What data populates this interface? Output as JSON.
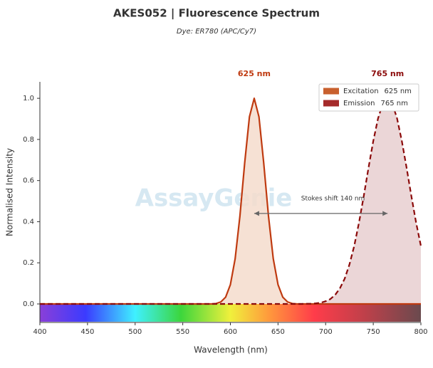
{
  "chart_data": {
    "type": "line",
    "title": "AKES052  |  Fluorescence Spectrum",
    "subtitle": "Dye: ER780 (APC/Cy7)",
    "x_label": "Wavelength (nm)",
    "y_label": "Normalised Intensity",
    "watermark": "AssayGenie",
    "x": [
      400,
      560,
      570,
      580,
      585,
      590,
      595,
      600,
      605,
      610,
      615,
      620,
      625,
      630,
      635,
      640,
      645,
      650,
      655,
      660,
      665,
      670,
      675,
      680,
      685,
      690,
      695,
      700,
      705,
      710,
      715,
      720,
      725,
      730,
      735,
      740,
      745,
      750,
      755,
      760,
      765,
      770,
      775,
      780,
      785,
      790,
      795,
      800
    ],
    "series": [
      {
        "name": "Excitation",
        "color": "#bf3a10",
        "fill": "#f5dccd",
        "legend_color": "#c8602e",
        "dashed": false,
        "peak": 625,
        "peak_label": "625 nm",
        "values": [
          0,
          0,
          0,
          0,
          0.002,
          0.01,
          0.033,
          0.094,
          0.22,
          0.427,
          0.685,
          0.91,
          1,
          0.91,
          0.685,
          0.427,
          0.22,
          0.094,
          0.033,
          0.01,
          0.002,
          0,
          0,
          0,
          0,
          0,
          0,
          0,
          0,
          0,
          0,
          0,
          0,
          0,
          0,
          0,
          0,
          0,
          0,
          0,
          0,
          0,
          0,
          0,
          0,
          0,
          0,
          0
        ]
      },
      {
        "name": "Emission",
        "color": "#8b0a0a",
        "fill": "#e8cfd0",
        "legend_color": "#a52a2a",
        "dashed": true,
        "peak": 765,
        "peak_label": "765 nm",
        "values": [
          0,
          0,
          0,
          0,
          0,
          0,
          0,
          0,
          0,
          0,
          0,
          0,
          0,
          0,
          0,
          0,
          0,
          0,
          0,
          0,
          0,
          0,
          0,
          0.001,
          0.001,
          0.003,
          0.006,
          0.013,
          0.024,
          0.044,
          0.076,
          0.123,
          0.192,
          0.282,
          0.395,
          0.524,
          0.662,
          0.792,
          0.902,
          0.974,
          1,
          0.974,
          0.902,
          0.792,
          0.662,
          0.524,
          0.395,
          0.282
        ]
      }
    ],
    "stokes_shift": {
      "label": "Stokes shift  140 nm",
      "from": 625,
      "to": 765,
      "y": 0.44
    },
    "xlim": [
      400,
      800
    ],
    "ylim": [
      -0.09,
      1.08
    ],
    "xticks": [
      400,
      450,
      500,
      550,
      600,
      650,
      700,
      750,
      800
    ],
    "yticks": [
      {
        "value": 0,
        "label": "0.0"
      },
      0.2,
      0.4,
      0.6,
      0.8,
      {
        "value": 1,
        "label": "1.0"
      }
    ],
    "legend": "upper right"
  }
}
